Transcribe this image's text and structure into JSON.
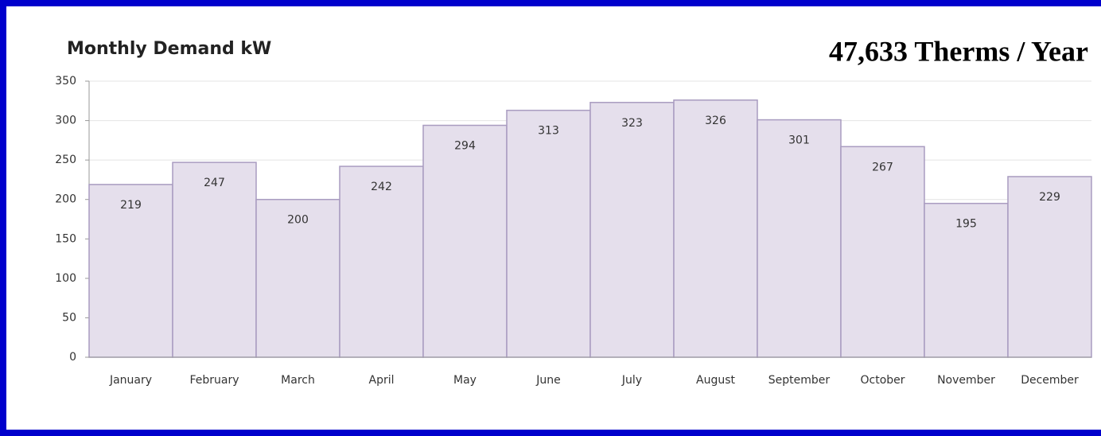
{
  "chart_data": {
    "type": "bar",
    "title": "Monthly Demand kW",
    "annotation": "47,633 Therms / Year",
    "categories": [
      "January",
      "February",
      "March",
      "April",
      "May",
      "June",
      "July",
      "August",
      "September",
      "October",
      "November",
      "December"
    ],
    "values": [
      219,
      247,
      200,
      242,
      294,
      313,
      323,
      326,
      301,
      267,
      195,
      229
    ],
    "color": "#e5dfec",
    "edge_color": "#a99cc0",
    "ylim": [
      0,
      350
    ],
    "yticks": [
      0,
      50,
      100,
      150,
      200,
      250,
      300,
      350
    ],
    "grid": true
  }
}
